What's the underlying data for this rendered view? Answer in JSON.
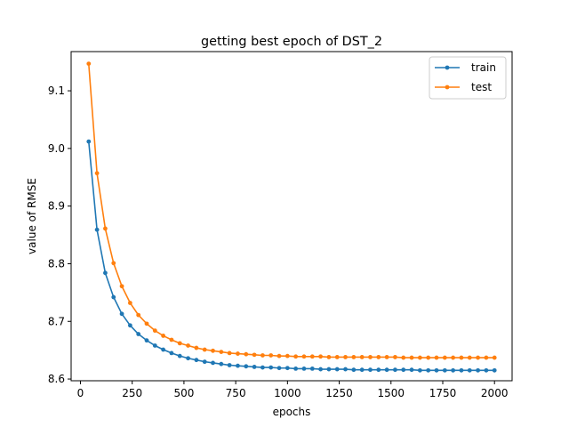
{
  "chart_data": {
    "type": "line",
    "title": "getting best epoch of DST_2",
    "xlabel": "epochs",
    "ylabel": "value of RMSE",
    "xlim": [
      -45,
      2085
    ],
    "ylim": [
      8.597,
      9.168
    ],
    "xticks": [
      0,
      250,
      500,
      750,
      1000,
      1250,
      1500,
      1750,
      2000
    ],
    "xtick_labels": [
      "0",
      "250",
      "500",
      "750",
      "1000",
      "1250",
      "1500",
      "1750",
      "2000"
    ],
    "yticks": [
      8.6,
      8.7,
      8.8,
      8.9,
      9.0,
      9.1
    ],
    "ytick_labels": [
      "8.6",
      "8.7",
      "8.8",
      "8.9",
      "9.0",
      "9.1"
    ],
    "grid": false,
    "legend_position": "top-right",
    "marker": "circle",
    "x": [
      40,
      80,
      120,
      160,
      200,
      240,
      280,
      320,
      360,
      400,
      440,
      480,
      520,
      560,
      600,
      640,
      680,
      720,
      760,
      800,
      840,
      880,
      920,
      960,
      1000,
      1040,
      1080,
      1120,
      1160,
      1200,
      1240,
      1280,
      1320,
      1360,
      1400,
      1440,
      1480,
      1520,
      1560,
      1600,
      1640,
      1680,
      1720,
      1760,
      1800,
      1840,
      1880,
      1920,
      1960,
      2000
    ],
    "series": [
      {
        "name": "train",
        "color": "#1f77b4",
        "values": [
          9.012,
          8.859,
          8.784,
          8.742,
          8.713,
          8.693,
          8.678,
          8.667,
          8.658,
          8.651,
          8.645,
          8.64,
          8.636,
          8.633,
          8.63,
          8.628,
          8.626,
          8.624,
          8.623,
          8.622,
          8.621,
          8.62,
          8.62,
          8.619,
          8.619,
          8.618,
          8.618,
          8.618,
          8.617,
          8.617,
          8.617,
          8.617,
          8.616,
          8.616,
          8.616,
          8.616,
          8.616,
          8.616,
          8.616,
          8.616,
          8.615,
          8.615,
          8.615,
          8.615,
          8.615,
          8.615,
          8.615,
          8.615,
          8.615,
          8.615
        ]
      },
      {
        "name": "test",
        "color": "#ff7f0e",
        "values": [
          9.147,
          8.957,
          8.861,
          8.801,
          8.761,
          8.732,
          8.711,
          8.696,
          8.684,
          8.675,
          8.668,
          8.662,
          8.658,
          8.654,
          8.651,
          8.649,
          8.647,
          8.645,
          8.644,
          8.643,
          8.642,
          8.641,
          8.641,
          8.64,
          8.64,
          8.639,
          8.639,
          8.639,
          8.639,
          8.638,
          8.638,
          8.638,
          8.638,
          8.638,
          8.638,
          8.638,
          8.638,
          8.638,
          8.637,
          8.637,
          8.637,
          8.637,
          8.637,
          8.637,
          8.637,
          8.637,
          8.637,
          8.637,
          8.637,
          8.637
        ]
      }
    ]
  }
}
